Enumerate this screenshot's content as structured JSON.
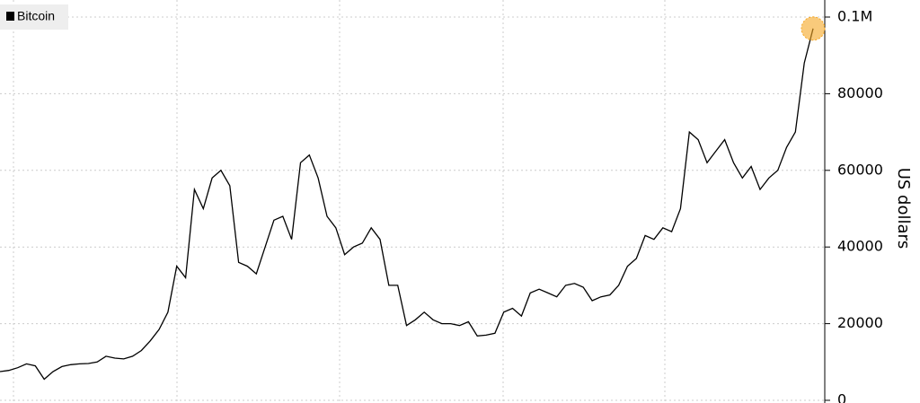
{
  "chart_data": {
    "type": "line",
    "ylabel": "US dollars",
    "series": [
      {
        "name": "Bitcoin",
        "color": "#000000",
        "values": [
          7500,
          7800,
          8500,
          9500,
          9000,
          5500,
          7500,
          8800,
          9300,
          9500,
          9600,
          10000,
          11500,
          11000,
          10800,
          11500,
          13000,
          15500,
          18500,
          23000,
          35000,
          32000,
          55000,
          50000,
          58000,
          60000,
          56000,
          36000,
          35000,
          33000,
          40000,
          47000,
          48000,
          42000,
          62000,
          64000,
          58000,
          48000,
          45000,
          38000,
          40000,
          41000,
          45000,
          42000,
          30000,
          30000,
          19500,
          21000,
          23000,
          21000,
          20000,
          20000,
          19500,
          20500,
          16800,
          17000,
          17500,
          23000,
          24000,
          22000,
          28000,
          29000,
          28000,
          27000,
          30000,
          30500,
          29500,
          26000,
          27000,
          27500,
          30000,
          35000,
          37000,
          43000,
          42000,
          45000,
          44000,
          50000,
          70000,
          68000,
          62000,
          65000,
          68000,
          62000,
          58000,
          61000,
          55000,
          58000,
          60000,
          66000,
          70000,
          88000,
          97000
        ]
      }
    ],
    "ylim": [
      0,
      100000
    ],
    "yticks": [
      0,
      20000,
      40000,
      60000,
      80000,
      {
        "value": 100000,
        "label": "0.1M"
      }
    ],
    "grid": true,
    "legend": "upper left",
    "highlight_color": "#f5a623"
  }
}
